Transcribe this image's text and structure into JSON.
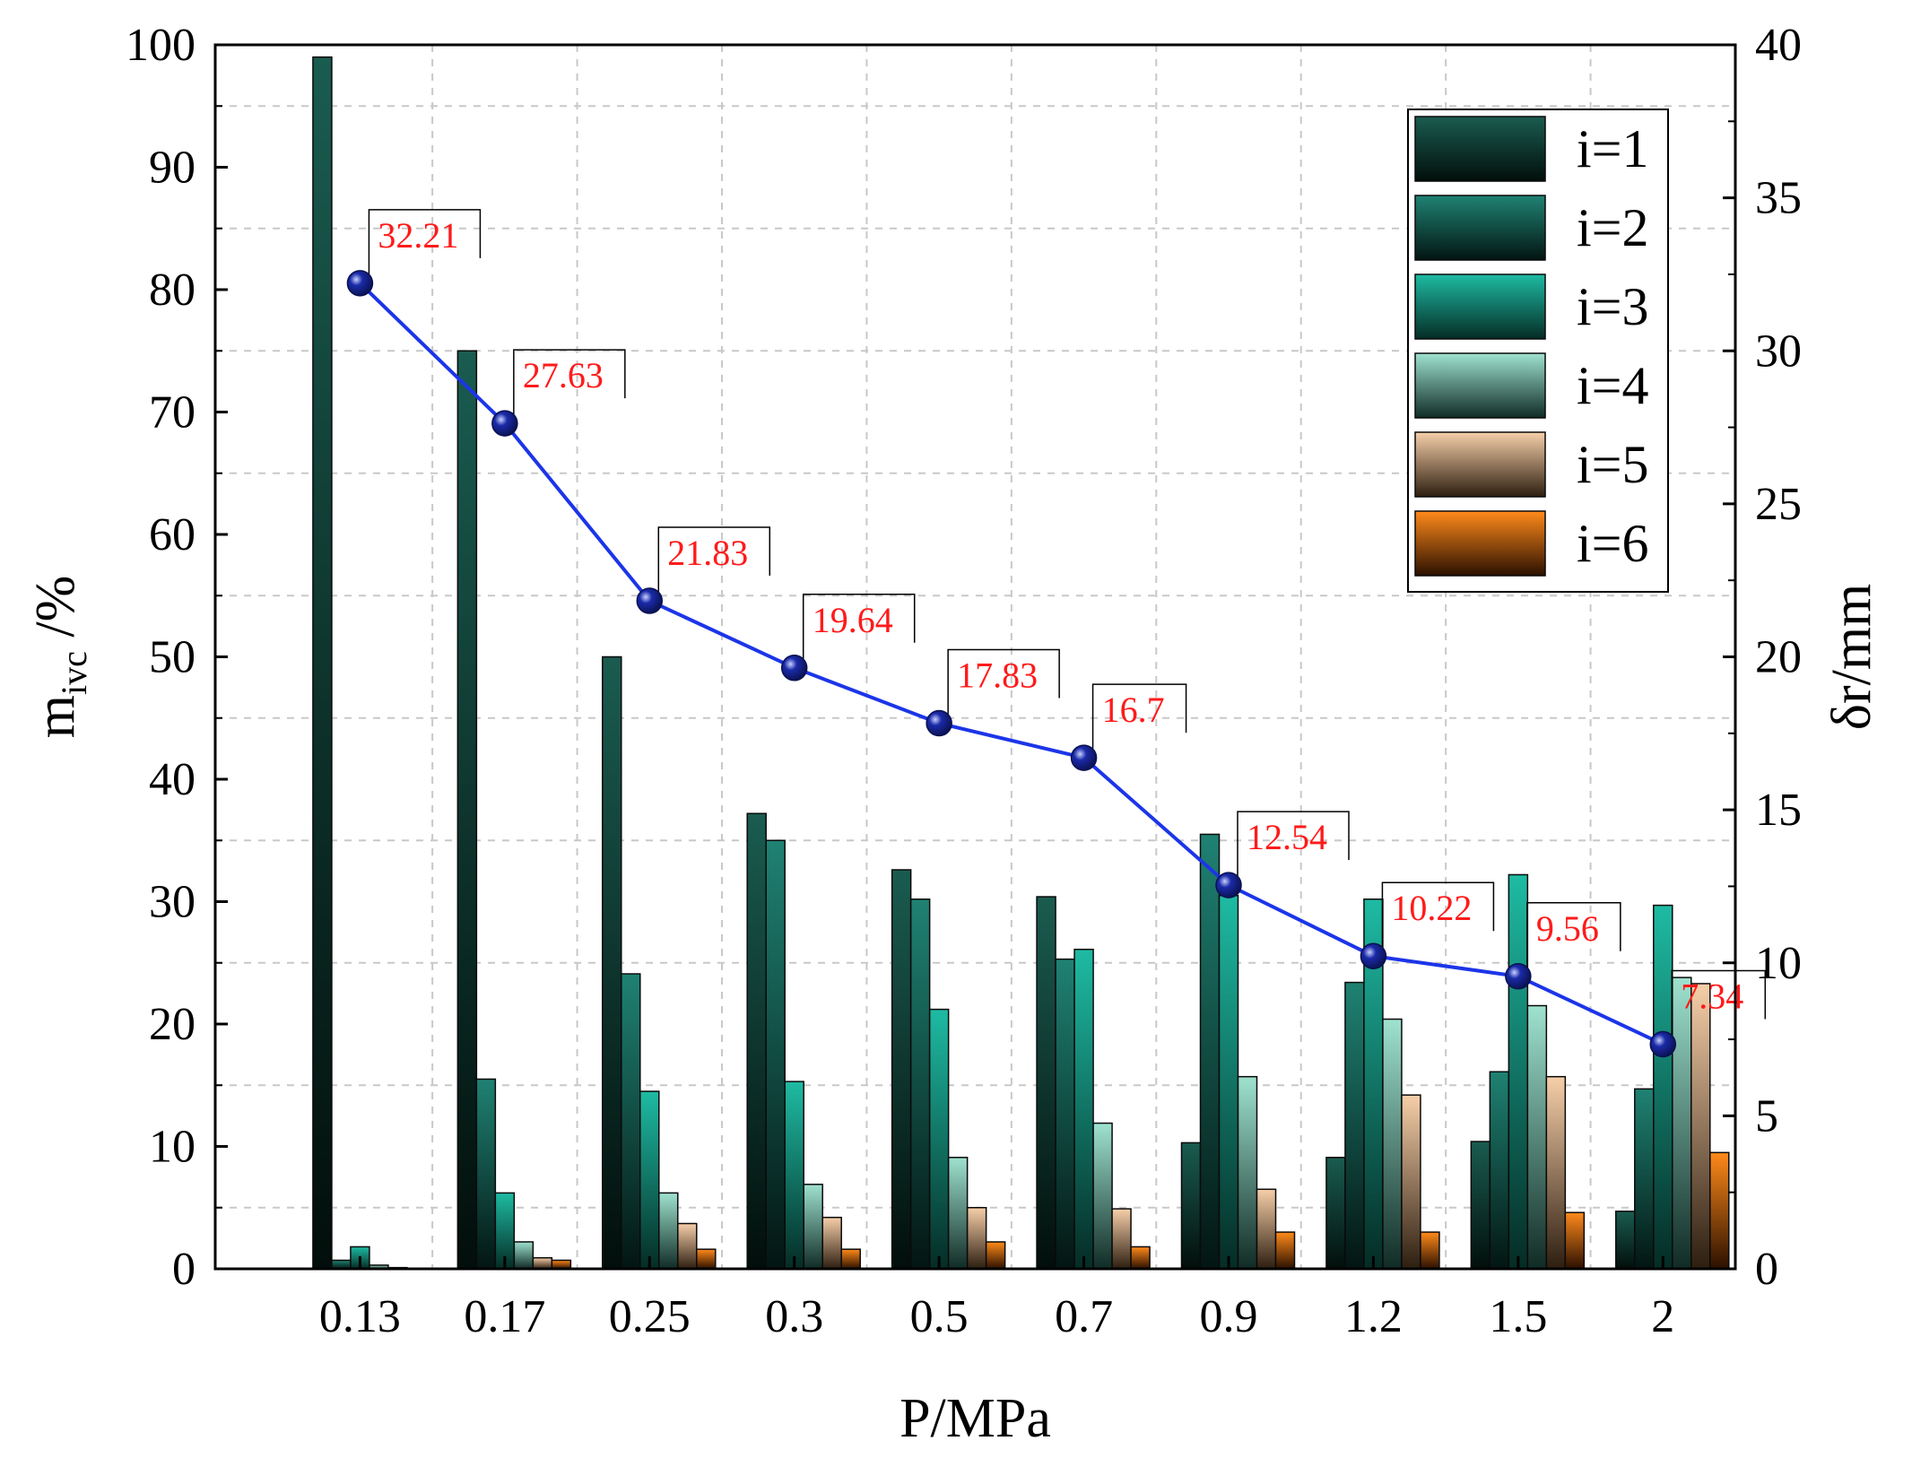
{
  "chart_data": {
    "type": "bar",
    "xlabel": "P/MPa",
    "ylabel_main": "m",
    "ylabel_sub": "ivc",
    "ylabel_unit": " /%",
    "y2label": "δr/mm",
    "ylim": [
      0,
      100
    ],
    "y2lim": [
      0,
      40
    ],
    "yticks": [
      "0",
      "10",
      "20",
      "30",
      "40",
      "50",
      "60",
      "70",
      "80",
      "90",
      "100"
    ],
    "y2ticks": [
      "0",
      "5",
      "10",
      "15",
      "20",
      "25",
      "30",
      "35",
      "40"
    ],
    "grid": true,
    "legend_position": "top-right",
    "categories": [
      "0.13",
      "0.17",
      "0.25",
      "0.3",
      "0.5",
      "0.7",
      "0.9",
      "1.2",
      "1.5",
      "2"
    ],
    "series": [
      {
        "name": "i=1",
        "color_top": "#1a5c50",
        "color_bottom": "#020e0b",
        "values": [
          99,
          75,
          50,
          37.2,
          32.6,
          30.4,
          10.3,
          9.1,
          10.4,
          4.7
        ]
      },
      {
        "name": "i=2",
        "color_top": "#1f8273",
        "color_bottom": "#031512",
        "values": [
          0.7,
          15.5,
          24.1,
          35.0,
          30.2,
          25.3,
          35.5,
          23.4,
          16.1,
          14.7
        ]
      },
      {
        "name": "i=3",
        "color_top": "#1ebba3",
        "color_bottom": "#052c25",
        "values": [
          1.8,
          6.2,
          14.5,
          15.3,
          21.2,
          26.1,
          30.5,
          30.2,
          32.2,
          29.7
        ]
      },
      {
        "name": "i=4",
        "color_top": "#9fe2cf",
        "color_bottom": "#102b25",
        "values": [
          0.3,
          2.2,
          6.2,
          6.9,
          9.1,
          11.9,
          15.7,
          20.4,
          21.5,
          23.8
        ]
      },
      {
        "name": "i=5",
        "color_top": "#f7cfa9",
        "color_bottom": "#2d1e10",
        "values": [
          0.1,
          0.9,
          3.7,
          4.2,
          5.0,
          4.9,
          6.5,
          14.2,
          15.7,
          23.3
        ]
      },
      {
        "name": "i=6",
        "color_top": "#ff8a1a",
        "color_bottom": "#2b1000",
        "values": [
          0.05,
          0.7,
          1.6,
          1.6,
          2.2,
          1.8,
          3.0,
          3.0,
          4.6,
          9.5
        ]
      }
    ],
    "line_series": {
      "name": "δr",
      "axis": "right",
      "color": "#1c35e8",
      "marker_color": "#1a2aa8",
      "values": [
        32.21,
        27.63,
        21.83,
        19.64,
        17.83,
        16.7,
        12.54,
        10.22,
        9.56,
        7.34
      ],
      "labels": [
        "32.21",
        "27.63",
        "21.83",
        "19.64",
        "17.83",
        "16.7",
        "12.54",
        "10.22",
        "9.56",
        "7.34"
      ],
      "label_color": "#ff1a1a"
    }
  }
}
